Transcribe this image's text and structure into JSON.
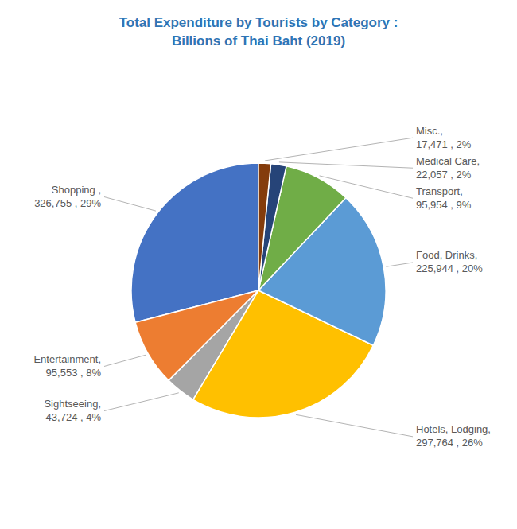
{
  "chart_data": {
    "type": "pie",
    "title": "Total Expenditure by Tourists by Category :\nBillions of Thai Baht (2019)",
    "categories": [
      "Shopping ,\n326,755 , 29%",
      "Entertainment,\n95,553 , 8%",
      "Sightseeing,\n43,724 , 4%",
      "Hotels, Lodging,\n297,764 , 26%",
      "Food, Drinks,\n225,944 , 20%",
      "Transport,\n95,954 , 9%",
      "Medical Care,\n22,057 , 2%",
      "Misc.,\n17,471 , 2%"
    ],
    "values": [
      326755,
      95553,
      43724,
      297764,
      225944,
      95954,
      22057,
      17471
    ],
    "colors": [
      "#4472C4",
      "#ED7D31",
      "#A5A5A5",
      "#FFC000",
      "#5B9BD5",
      "#70AD47",
      "#264478",
      "#843C0C"
    ]
  }
}
